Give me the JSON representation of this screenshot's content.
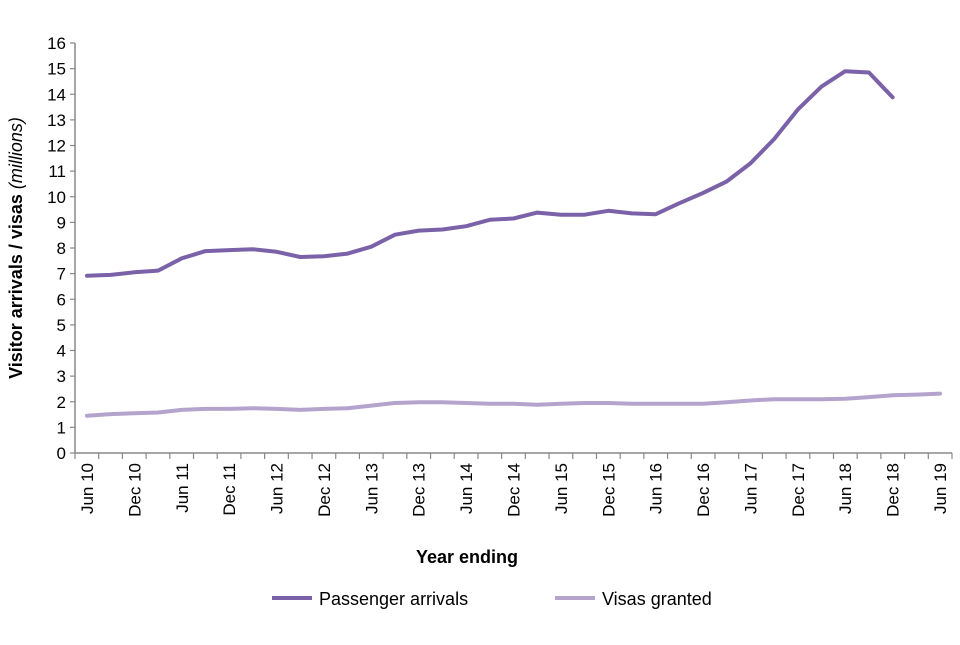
{
  "chart_data": {
    "type": "line",
    "title": "",
    "xlabel": "Year ending",
    "ylabel": "Visitor arrivals / visas",
    "ylabel_unit": "(millions)",
    "ylim": [
      0,
      16
    ],
    "yticks": [
      0,
      1,
      2,
      3,
      4,
      5,
      6,
      7,
      8,
      9,
      10,
      11,
      12,
      13,
      14,
      15,
      16
    ],
    "x": [
      "Jun 10",
      "Sep 10",
      "Dec 10",
      "Mar 11",
      "Jun 11",
      "Sep 11",
      "Dec 11",
      "Mar 12",
      "Jun 12",
      "Sep 12",
      "Dec 12",
      "Mar 13",
      "Jun 13",
      "Sep 13",
      "Dec 13",
      "Mar 14",
      "Jun 14",
      "Sep 14",
      "Dec 14",
      "Mar 15",
      "Jun 15",
      "Sep 15",
      "Dec 15",
      "Mar 16",
      "Jun 16",
      "Sep 16",
      "Dec 16",
      "Mar 17",
      "Jun 17",
      "Sep 17",
      "Dec 17",
      "Mar 18",
      "Jun 18",
      "Sep 18",
      "Dec 18",
      "Mar 19",
      "Jun 19"
    ],
    "xtick_labels": [
      "Jun 10",
      "Dec 10",
      "Jun 11",
      "Dec 11",
      "Jun 12",
      "Dec 12",
      "Jun 13",
      "Dec 13",
      "Jun 14",
      "Dec 14",
      "Jun 15",
      "Dec 15",
      "Jun 16",
      "Dec 16",
      "Jun 17",
      "Dec 17",
      "Jun 18",
      "Dec 18",
      "Jun 19"
    ],
    "grid": false,
    "legend_placement": "bottom",
    "series": [
      {
        "name": "Passenger arrivals",
        "color": "#7b62a8",
        "values": [
          6.92,
          6.95,
          7.05,
          7.12,
          7.6,
          7.88,
          7.92,
          7.95,
          7.85,
          7.65,
          7.68,
          7.78,
          8.05,
          8.52,
          8.68,
          8.72,
          8.85,
          9.1,
          9.15,
          9.38,
          9.3,
          9.3,
          9.45,
          9.35,
          9.32,
          9.75,
          10.15,
          10.6,
          11.3,
          12.25,
          13.4,
          14.3,
          14.9,
          14.85,
          13.88,
          null,
          null
        ]
      },
      {
        "name": "Visas granted",
        "color": "#b4a3cd",
        "values": [
          1.45,
          1.52,
          1.55,
          1.58,
          1.68,
          1.72,
          1.72,
          1.75,
          1.72,
          1.68,
          1.72,
          1.75,
          1.85,
          1.95,
          1.98,
          1.98,
          1.95,
          1.92,
          1.92,
          1.88,
          1.92,
          1.95,
          1.95,
          1.92,
          1.92,
          1.92,
          1.92,
          1.98,
          2.05,
          2.1,
          2.1,
          2.1,
          2.12,
          2.18,
          2.25,
          2.28,
          2.32
        ]
      }
    ]
  }
}
